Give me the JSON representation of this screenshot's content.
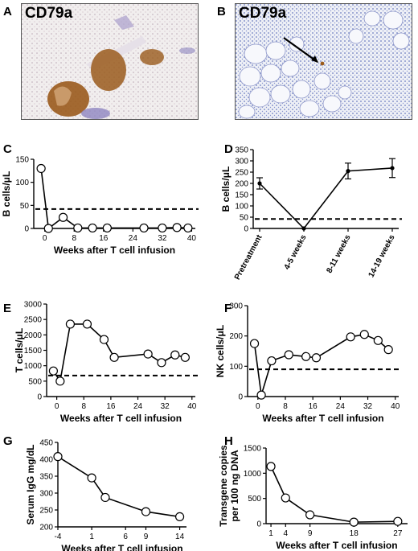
{
  "panels": {
    "A": {
      "letter": "A",
      "stain": "CD79a"
    },
    "B": {
      "letter": "B",
      "stain": "CD79a"
    },
    "C": {
      "letter": "C"
    },
    "D": {
      "letter": "D"
    },
    "E": {
      "letter": "E"
    },
    "F": {
      "letter": "F"
    },
    "G": {
      "letter": "G"
    },
    "H": {
      "letter": "H"
    }
  },
  "colors": {
    "line": "#000000",
    "marker_fill": "#ffffff",
    "stain_brown": "#9a5a1c",
    "stain_blue": "#5b6fb8"
  },
  "chart_data": [
    {
      "id": "C",
      "type": "line",
      "title": "",
      "xlabel": "Weeks after T cell infusion",
      "ylabel": "B cells/μL",
      "xlim": [
        -3,
        41
      ],
      "ylim": [
        0,
        150
      ],
      "xticks": [
        0,
        8,
        16,
        24,
        32,
        40
      ],
      "yticks": [
        0,
        50,
        100,
        150
      ],
      "threshold": 42,
      "series": [
        {
          "x": [
            -1,
            1,
            5,
            9,
            13,
            17,
            27,
            32,
            36,
            39
          ],
          "y": [
            130,
            0,
            24,
            1,
            1,
            1,
            1,
            1,
            2,
            1
          ]
        }
      ]
    },
    {
      "id": "D",
      "type": "line",
      "title": "",
      "xlabel": "",
      "ylabel": "B cells/μL",
      "ylim": [
        0,
        350
      ],
      "yticks": [
        0,
        50,
        100,
        150,
        200,
        250,
        300,
        350
      ],
      "categories": [
        "Pretreatment",
        "4-5 weeks",
        "8-11 weeks",
        "14-19 weeks"
      ],
      "threshold": 42,
      "series": [
        {
          "values": [
            200,
            0,
            255,
            268
          ],
          "errors": [
            25,
            0,
            35,
            42
          ]
        }
      ]
    },
    {
      "id": "E",
      "type": "line",
      "title": "",
      "xlabel": "Weeks after T cell infusion",
      "ylabel": "T cells/μL",
      "xlim": [
        -3,
        41
      ],
      "ylim": [
        0,
        3000
      ],
      "xticks": [
        0,
        8,
        16,
        24,
        32,
        40
      ],
      "yticks": [
        0,
        500,
        1000,
        1500,
        2000,
        2500,
        3000
      ],
      "threshold": 680,
      "series": [
        {
          "x": [
            -1,
            1,
            4,
            9,
            14,
            17,
            27,
            31,
            35,
            38
          ],
          "y": [
            830,
            500,
            2350,
            2350,
            1850,
            1270,
            1380,
            1100,
            1350,
            1270
          ]
        }
      ]
    },
    {
      "id": "F",
      "type": "line",
      "title": "",
      "xlabel": "Weeks after T cell infusion",
      "ylabel": "NK cells/μL",
      "xlim": [
        -3,
        41
      ],
      "ylim": [
        0,
        300
      ],
      "xticks": [
        0,
        8,
        16,
        24,
        32,
        40
      ],
      "yticks": [
        0,
        100,
        200,
        300
      ],
      "threshold": 90,
      "series": [
        {
          "x": [
            -1,
            1,
            4,
            9,
            14,
            17,
            27,
            31,
            35,
            38
          ],
          "y": [
            175,
            5,
            118,
            138,
            132,
            128,
            197,
            205,
            185,
            155
          ]
        }
      ]
    },
    {
      "id": "G",
      "type": "line",
      "title": "",
      "xlabel": "Weeks after T cell infusion",
      "ylabel": "Serum IgG mg/dL",
      "xlim": [
        -4,
        15
      ],
      "ylim": [
        200,
        450
      ],
      "xticks": [
        -4,
        1,
        6,
        9,
        14
      ],
      "yticks": [
        200,
        250,
        300,
        350,
        400,
        450
      ],
      "series": [
        {
          "x": [
            -4,
            1,
            3,
            9,
            14
          ],
          "y": [
            408,
            345,
            287,
            245,
            230
          ]
        }
      ]
    },
    {
      "id": "H",
      "type": "line",
      "title": "",
      "xlabel": "Weeks after T cell infusion",
      "ylabel": "Transgene copies per 100 ng DNA",
      "ylabel_lines": [
        "Transgene copies",
        "per 100 ng DNA"
      ],
      "xlim": [
        0,
        29
      ],
      "ylim": [
        0,
        1500
      ],
      "xticks": [
        1,
        4,
        9,
        18,
        27
      ],
      "yticks": [
        0,
        500,
        1000,
        1500
      ],
      "series": [
        {
          "x": [
            1,
            4,
            9,
            18,
            27
          ],
          "y": [
            1135,
            510,
            175,
            30,
            45
          ]
        }
      ]
    }
  ]
}
